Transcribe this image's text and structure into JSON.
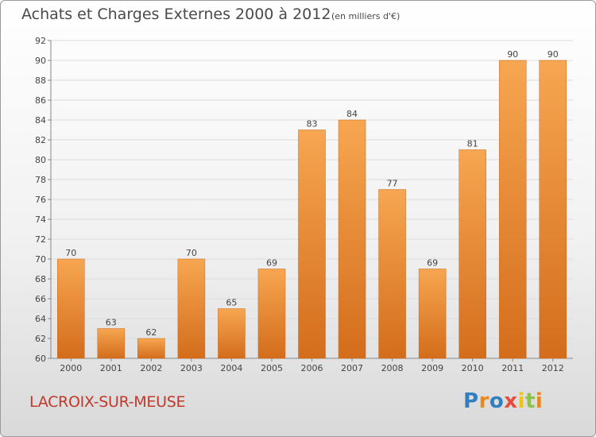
{
  "header": {
    "title": "Achats et Charges Externes 2000 à 2012",
    "unit": "(en milliers d'€)"
  },
  "footer": {
    "commune": "LACROIX-SUR-MEUSE",
    "logo": "Proxiti"
  },
  "colors": {
    "bar_light": "#f7a651",
    "bar_dark": "#d36d1c",
    "commune": "#c0392b",
    "logo_letters": [
      "#2f7fc1",
      "#e8891c",
      "#2f7fc1",
      "#e74c3c",
      "#f1c40f",
      "#8bc34a",
      "#e8891c"
    ]
  },
  "chart_data": {
    "type": "bar",
    "title": "Achats et Charges Externes 2000 à 2012",
    "subtitle": "(en milliers d'€)",
    "xlabel": "",
    "ylabel": "",
    "categories": [
      "2000",
      "2001",
      "2002",
      "2003",
      "2004",
      "2005",
      "2006",
      "2007",
      "2008",
      "2009",
      "2010",
      "2011",
      "2012"
    ],
    "values": [
      70,
      63,
      62,
      70,
      65,
      69,
      83,
      84,
      77,
      69,
      81,
      90,
      90
    ],
    "ylim": [
      60,
      92
    ],
    "yticks": [
      60,
      62,
      64,
      66,
      68,
      70,
      72,
      74,
      76,
      78,
      80,
      82,
      84,
      86,
      88,
      90,
      92
    ],
    "grid": true,
    "legend": "none",
    "data_labels": true
  }
}
